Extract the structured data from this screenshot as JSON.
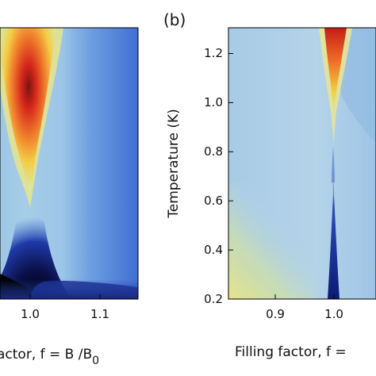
{
  "chart_data": [
    {
      "type": "heatmap",
      "panel_label": "",
      "xlabel_prefix": "actor, f = B /B",
      "xlabel_subscript": "0",
      "ylabel": "",
      "x_ticks": [
        {
          "value": 1.0,
          "label": "1.0"
        },
        {
          "value": 1.1,
          "label": "1.1"
        }
      ],
      "y_ticks": [],
      "xlim": [
        0.82,
        1.17
      ],
      "ylim": [
        0.2,
        1.27
      ],
      "colormap": "jet",
      "colorscale_colors": [
        "#000000",
        "#1a2d9c",
        "#3a72d8",
        "#a9cde8",
        "#f0e46a",
        "#f5a23a",
        "#d7261c"
      ],
      "features": [
        {
          "description": "hot lobe (red) above f=1.0 peaking near the top, narrowing downward",
          "center_f": 1.0,
          "t_range": [
            0.62,
            1.27
          ],
          "intensity": "high"
        },
        {
          "description": "dark blue/black minimum near f=1.0 at low temperature",
          "center_f": 1.0,
          "t_range": [
            0.2,
            0.58
          ],
          "intensity": "minimum"
        }
      ]
    },
    {
      "type": "heatmap",
      "panel_label": "(b)",
      "xlabel": "Filling factor, f =",
      "ylabel": "Temperature (K)",
      "x_ticks": [
        {
          "value": 0.9,
          "label": "0.9"
        },
        {
          "value": 1.0,
          "label": "1.0"
        }
      ],
      "y_ticks": [
        {
          "value": 0.2,
          "label": "0.2"
        },
        {
          "value": 0.4,
          "label": "0.4"
        },
        {
          "value": 0.6,
          "label": "0.6"
        },
        {
          "value": 0.8,
          "label": "0.8"
        },
        {
          "value": 1.0,
          "label": "1.0"
        },
        {
          "value": 1.2,
          "label": "1.2"
        }
      ],
      "xlim": [
        0.835,
        1.08
      ],
      "ylim": [
        0.2,
        1.27
      ],
      "colormap": "jet",
      "colorscale_colors": [
        "#14268a",
        "#3a72d8",
        "#a9cde8",
        "#d9e6a0",
        "#f0e46a",
        "#f5a23a",
        "#d7261c"
      ],
      "features": [
        {
          "description": "narrow red peak at f=1.0 near top temperature",
          "center_f": 1.0,
          "t_range": [
            1.0,
            1.27
          ],
          "intensity": "high"
        },
        {
          "description": "narrow dark blue stripe at f=1.0 at low temperature",
          "center_f": 1.0,
          "t_range": [
            0.2,
            0.75
          ],
          "intensity": "minimum"
        },
        {
          "description": "yellow-green background at lower left",
          "center_f": 0.86,
          "t_range": [
            0.2,
            0.45
          ],
          "intensity": "medium"
        }
      ]
    }
  ]
}
